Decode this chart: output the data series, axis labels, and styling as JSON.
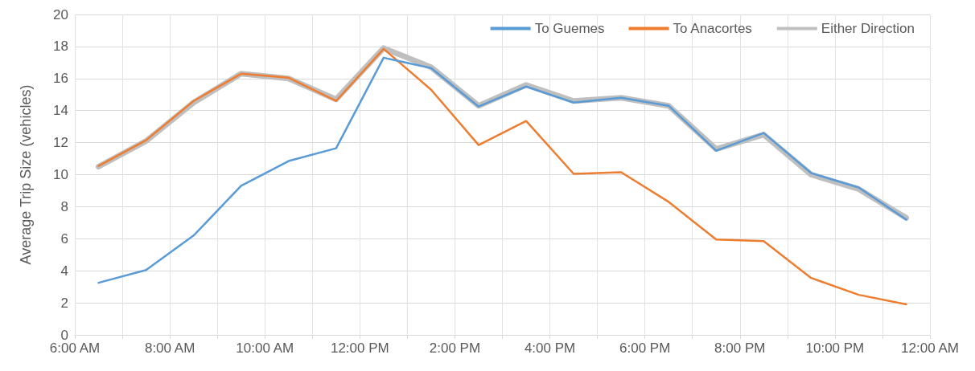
{
  "chart_data": {
    "type": "line",
    "ylabel": "Average Trip Size (vehicles)",
    "x": [
      6.5,
      7.5,
      8.5,
      9.5,
      10.5,
      11.5,
      12.5,
      13.5,
      14.5,
      15.5,
      16.5,
      17.5,
      18.5,
      19.5,
      20.5,
      21.5,
      22.5,
      23.5
    ],
    "series": [
      {
        "name": "To Guemes",
        "color": "#5b9bd5",
        "values": [
          3.25,
          4.05,
          6.2,
          9.3,
          10.85,
          11.65,
          17.3,
          16.65,
          14.25,
          15.5,
          14.5,
          14.8,
          14.3,
          11.5,
          12.6,
          10.1,
          9.2,
          7.2
        ]
      },
      {
        "name": "To Anacortes",
        "color": "#ed7d31",
        "values": [
          10.55,
          12.15,
          14.6,
          16.3,
          16.05,
          14.6,
          17.85,
          15.3,
          11.85,
          13.35,
          10.05,
          10.15,
          8.3,
          5.95,
          5.85,
          3.55,
          2.5,
          1.9
        ]
      },
      {
        "name": "Either Direction",
        "color": "#bfbfbf",
        "values": [
          10.5,
          12.1,
          14.5,
          16.3,
          16.0,
          14.7,
          17.9,
          16.7,
          14.3,
          15.6,
          14.6,
          14.8,
          14.3,
          11.6,
          12.5,
          10.0,
          9.1,
          7.3
        ]
      }
    ],
    "xlim": [
      6,
      24
    ],
    "xticks": [
      {
        "value": 6,
        "label": "6:00 AM"
      },
      {
        "value": 7,
        "label": null
      },
      {
        "value": 8,
        "label": "8:00 AM"
      },
      {
        "value": 9,
        "label": null
      },
      {
        "value": 10,
        "label": "10:00 AM"
      },
      {
        "value": 11,
        "label": null
      },
      {
        "value": 12,
        "label": "12:00 PM"
      },
      {
        "value": 13,
        "label": null
      },
      {
        "value": 14,
        "label": "2:00 PM"
      },
      {
        "value": 15,
        "label": null
      },
      {
        "value": 16,
        "label": "4:00 PM"
      },
      {
        "value": 17,
        "label": null
      },
      {
        "value": 18,
        "label": "6:00 PM"
      },
      {
        "value": 19,
        "label": null
      },
      {
        "value": 20,
        "label": "8:00 PM"
      },
      {
        "value": 21,
        "label": null
      },
      {
        "value": 22,
        "label": "10:00 PM"
      },
      {
        "value": 23,
        "label": null
      },
      {
        "value": 24,
        "label": "12:00 AM"
      }
    ],
    "ylim": [
      0,
      20
    ],
    "yticks": [
      0,
      2,
      4,
      6,
      8,
      10,
      12,
      14,
      16,
      18,
      20
    ],
    "grid": true,
    "legend": "top right",
    "marker": "none",
    "line_style": "solid"
  }
}
